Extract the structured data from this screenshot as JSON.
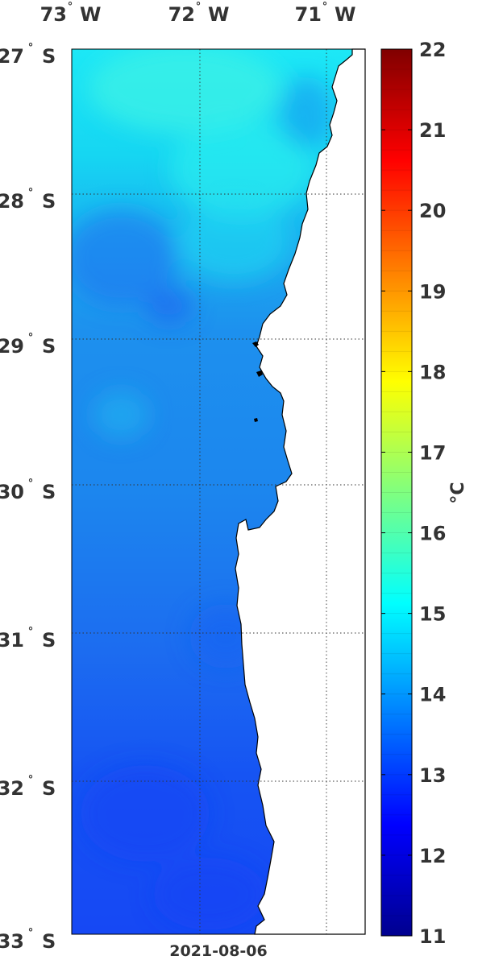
{
  "map": {
    "lon_labels": [
      {
        "deg": "73",
        "hemi": "W"
      },
      {
        "deg": "72",
        "hemi": "W"
      },
      {
        "deg": "71",
        "hemi": "W"
      }
    ],
    "lat_labels": [
      {
        "deg": "27",
        "hemi": "S"
      },
      {
        "deg": "28",
        "hemi": "S"
      },
      {
        "deg": "29",
        "hemi": "S"
      },
      {
        "deg": "30",
        "hemi": "S"
      },
      {
        "deg": "31",
        "hemi": "S"
      },
      {
        "deg": "32",
        "hemi": "S"
      },
      {
        "deg": "33",
        "hemi": "S"
      }
    ],
    "date": "2021-08-06",
    "grid": true,
    "land_color": "#ffffff",
    "coast_color": "#000000"
  },
  "colorbar": {
    "unit_label": "°C",
    "min": 11,
    "max": 22,
    "ticks": [
      "11",
      "12",
      "13",
      "14",
      "15",
      "16",
      "17",
      "18",
      "19",
      "20",
      "21",
      "22"
    ],
    "colormap": "jet"
  }
}
